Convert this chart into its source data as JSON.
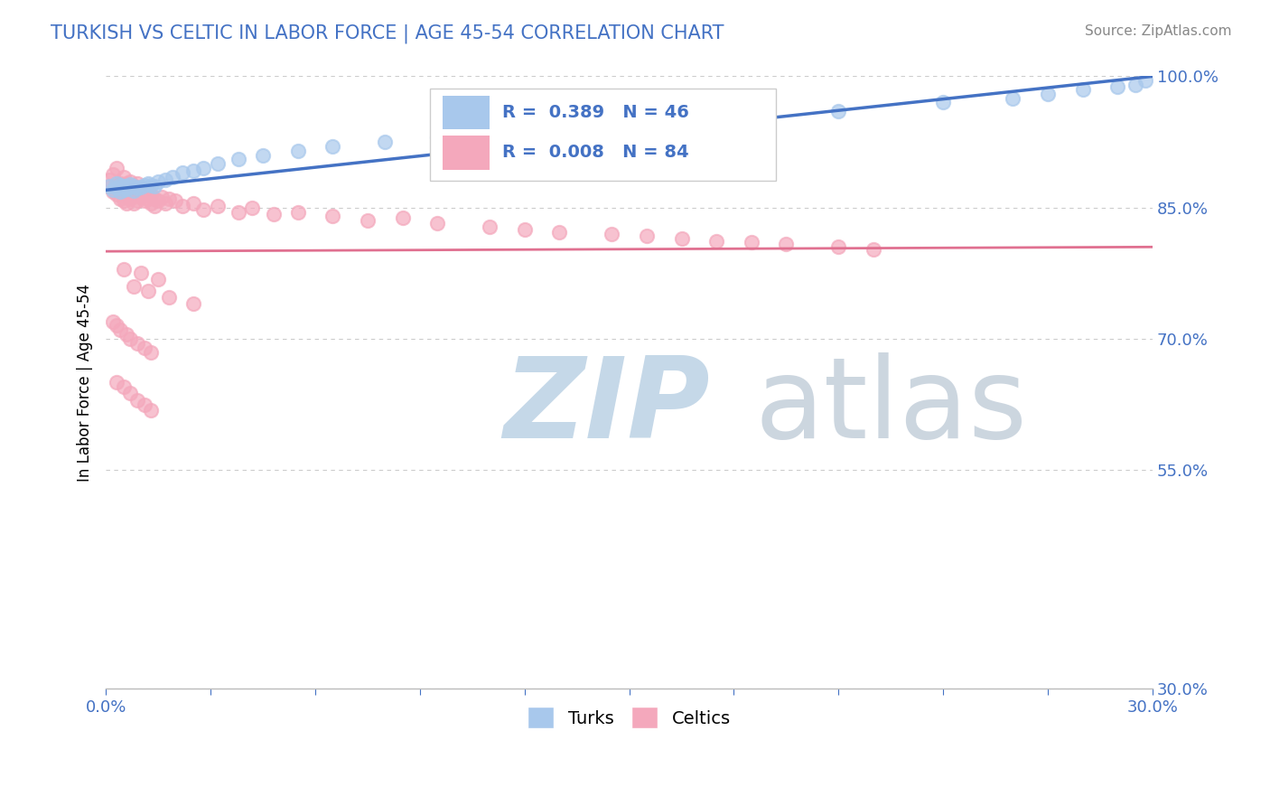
{
  "title": "TURKISH VS CELTIC IN LABOR FORCE | AGE 45-54 CORRELATION CHART",
  "source_text": "Source: ZipAtlas.com",
  "ylabel": "In Labor Force | Age 45-54",
  "xlim": [
    0.0,
    0.3
  ],
  "ylim": [
    0.3,
    1.0
  ],
  "xticks": [
    0.0,
    0.03,
    0.06,
    0.09,
    0.12,
    0.15,
    0.18,
    0.21,
    0.24,
    0.27,
    0.3
  ],
  "yticks": [
    0.3,
    0.55,
    0.7,
    0.85,
    1.0
  ],
  "yticklabels": [
    "30.0%",
    "55.0%",
    "70.0%",
    "85.0%",
    "100.0%"
  ],
  "blue_R": 0.389,
  "blue_N": 46,
  "pink_R": 0.008,
  "pink_N": 84,
  "blue_color": "#A8C8EC",
  "pink_color": "#F4A8BC",
  "blue_line_color": "#4472C4",
  "pink_line_color": "#E07090",
  "title_color": "#4472C4",
  "axis_color": "#4472C4",
  "legend_R_color": "#4472C4",
  "blue_scatter_x": [
    0.001,
    0.002,
    0.003,
    0.003,
    0.004,
    0.004,
    0.005,
    0.005,
    0.006,
    0.006,
    0.007,
    0.007,
    0.008,
    0.008,
    0.009,
    0.01,
    0.011,
    0.012,
    0.013,
    0.014,
    0.015,
    0.017,
    0.019,
    0.022,
    0.025,
    0.028,
    0.032,
    0.038,
    0.045,
    0.055,
    0.065,
    0.08,
    0.095,
    0.11,
    0.13,
    0.15,
    0.17,
    0.19,
    0.21,
    0.24,
    0.26,
    0.27,
    0.28,
    0.29,
    0.295,
    0.298
  ],
  "blue_scatter_y": [
    0.875,
    0.87,
    0.872,
    0.878,
    0.868,
    0.876,
    0.87,
    0.875,
    0.871,
    0.874,
    0.873,
    0.877,
    0.869,
    0.875,
    0.872,
    0.873,
    0.876,
    0.878,
    0.876,
    0.875,
    0.88,
    0.882,
    0.885,
    0.89,
    0.892,
    0.895,
    0.9,
    0.905,
    0.91,
    0.915,
    0.92,
    0.925,
    0.93,
    0.935,
    0.94,
    0.945,
    0.95,
    0.955,
    0.96,
    0.97,
    0.975,
    0.98,
    0.985,
    0.988,
    0.99,
    0.995
  ],
  "pink_scatter_x": [
    0.001,
    0.001,
    0.002,
    0.002,
    0.003,
    0.003,
    0.003,
    0.004,
    0.004,
    0.004,
    0.005,
    0.005,
    0.005,
    0.006,
    0.006,
    0.006,
    0.007,
    0.007,
    0.007,
    0.008,
    0.008,
    0.008,
    0.009,
    0.009,
    0.009,
    0.01,
    0.01,
    0.011,
    0.011,
    0.012,
    0.012,
    0.013,
    0.013,
    0.014,
    0.014,
    0.015,
    0.016,
    0.017,
    0.018,
    0.02,
    0.022,
    0.025,
    0.028,
    0.032,
    0.038,
    0.042,
    0.048,
    0.055,
    0.065,
    0.075,
    0.085,
    0.095,
    0.11,
    0.12,
    0.13,
    0.145,
    0.155,
    0.165,
    0.175,
    0.185,
    0.195,
    0.21,
    0.22,
    0.005,
    0.01,
    0.015,
    0.008,
    0.012,
    0.018,
    0.025,
    0.002,
    0.003,
    0.004,
    0.006,
    0.007,
    0.009,
    0.011,
    0.013,
    0.003,
    0.005,
    0.007,
    0.009,
    0.011,
    0.013
  ],
  "pink_scatter_y": [
    0.882,
    0.875,
    0.888,
    0.868,
    0.895,
    0.872,
    0.865,
    0.878,
    0.86,
    0.87,
    0.885,
    0.858,
    0.875,
    0.862,
    0.878,
    0.855,
    0.87,
    0.86,
    0.88,
    0.865,
    0.875,
    0.855,
    0.868,
    0.858,
    0.878,
    0.862,
    0.87,
    0.865,
    0.858,
    0.86,
    0.87,
    0.865,
    0.855,
    0.86,
    0.852,
    0.858,
    0.862,
    0.855,
    0.86,
    0.858,
    0.852,
    0.855,
    0.848,
    0.852,
    0.845,
    0.85,
    0.842,
    0.845,
    0.84,
    0.835,
    0.838,
    0.832,
    0.828,
    0.825,
    0.822,
    0.82,
    0.818,
    0.815,
    0.812,
    0.81,
    0.808,
    0.805,
    0.802,
    0.78,
    0.775,
    0.768,
    0.76,
    0.755,
    0.748,
    0.74,
    0.72,
    0.715,
    0.71,
    0.705,
    0.7,
    0.695,
    0.69,
    0.685,
    0.65,
    0.645,
    0.638,
    0.63,
    0.625,
    0.618
  ]
}
